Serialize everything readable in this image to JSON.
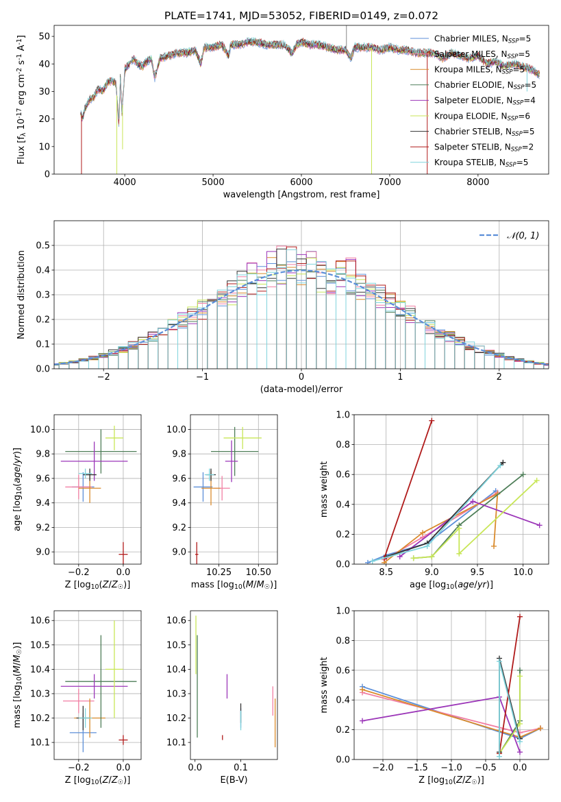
{
  "chart_data": [
    {
      "type": "line",
      "title": "PLATE=1741, MJD=53052, FIBERID=0149, z=0.072",
      "xlabel": "wavelength [Angstrom, rest frame]",
      "ylabel": "Flux [f_λ 10^-17 erg cm^-2 s^-1 A^-1]",
      "xlim": [
        3200,
        8800
      ],
      "ylim": [
        0,
        54
      ],
      "xticks": [
        4000,
        5000,
        6000,
        7000,
        8000
      ],
      "yticks": [
        0,
        10,
        20,
        30,
        40,
        50
      ],
      "legend_position": "top-right",
      "grid": false,
      "series": [
        {
          "name": "Chabrier MILES, N_SSP=5",
          "color": "#5b8ed8"
        },
        {
          "name": "Salpeter MILES, N_SSP=5",
          "color": "#f17ea3"
        },
        {
          "name": "Kroupa MILES, N_SSP=5",
          "color": "#d98a2b"
        },
        {
          "name": "Chabrier ELODIE, N_SSP=5",
          "color": "#4e7e58"
        },
        {
          "name": "Salpeter ELODIE, N_SSP=4",
          "color": "#9b35b8"
        },
        {
          "name": "Kroupa ELODIE, N_SSP=6",
          "color": "#c8e657"
        },
        {
          "name": "Chabrier STELIB, N_SSP=5",
          "color": "#333333"
        },
        {
          "name": "Salpeter STELIB, N_SSP=2",
          "color": "#b01a1a"
        },
        {
          "name": "Kroupa STELIB, N_SSP=5",
          "color": "#7fd3dc"
        }
      ],
      "spectrum": {
        "x": [
          3500,
          3520,
          3550,
          3600,
          3650,
          3700,
          3750,
          3800,
          3850,
          3900,
          3934,
          3950,
          3969,
          4000,
          4050,
          4100,
          4150,
          4200,
          4250,
          4300,
          4340,
          4400,
          4500,
          4600,
          4700,
          4800,
          4861,
          4900,
          5000,
          5100,
          5175,
          5200,
          5300,
          5400,
          5500,
          5600,
          5700,
          5800,
          5893,
          5950,
          6000,
          6100,
          6200,
          6300,
          6400,
          6500,
          6563,
          6600,
          6700,
          6800,
          6900,
          7000,
          7100,
          7200,
          7300,
          7400,
          7500,
          7600,
          7700,
          7800,
          7900,
          8000,
          8100,
          8200,
          8300,
          8400,
          8500,
          8600,
          8700
        ],
        "y": [
          22,
          20,
          24,
          27,
          28,
          31,
          30,
          33,
          34,
          33,
          18,
          35,
          22,
          38,
          40,
          42,
          40,
          39,
          41,
          42,
          35,
          42,
          43,
          44,
          44,
          45,
          40,
          46,
          46,
          47,
          43,
          47,
          47,
          48,
          48,
          47,
          47,
          47,
          44,
          47,
          48,
          47,
          47,
          46,
          45,
          45,
          42,
          46,
          46,
          46,
          45,
          46,
          45,
          45,
          44,
          44,
          44,
          42,
          44,
          43,
          42,
          43,
          40,
          41,
          39,
          40,
          39,
          38,
          36
        ]
      }
    },
    {
      "type": "bar",
      "ylabel": "Normed distribution",
      "xlabel": "(data-model)/error",
      "xlim": [
        -2.5,
        2.5
      ],
      "ylim": [
        0,
        0.6
      ],
      "xticks": [
        -2,
        -1,
        0,
        1,
        2
      ],
      "yticks": [
        0.0,
        0.1,
        0.2,
        0.3,
        0.4,
        0.5
      ],
      "grid": true,
      "legend_position": "top-right",
      "reference_curve": {
        "name": "𝒩(0, 1)",
        "color": "#5b8ed8",
        "style": "dashed",
        "mean": 0,
        "sigma": 1
      },
      "bin_width": 0.1
    },
    {
      "type": "scatter",
      "xlabel": "Z [log10(Z/Z☉)]",
      "ylabel": "age  [log10(age/yr)]",
      "xlim": [
        -0.31,
        0.08
      ],
      "ylim": [
        8.9,
        10.12
      ],
      "xticks": [
        -0.2,
        0.0
      ],
      "yticks": [
        9.0,
        9.2,
        9.4,
        9.6,
        9.8,
        10.0
      ],
      "grid": true,
      "points": [
        {
          "series": "Chabrier MILES",
          "x": -0.18,
          "xerr": 0.05,
          "y": 9.53,
          "yerr": 0.12
        },
        {
          "series": "Salpeter MILES",
          "x": -0.2,
          "xerr": 0.06,
          "y": 9.53,
          "yerr": 0.1
        },
        {
          "series": "Kroupa MILES",
          "x": -0.15,
          "xerr": 0.05,
          "y": 9.52,
          "yerr": 0.12
        },
        {
          "series": "Chabrier ELODIE",
          "x": -0.1,
          "xerr": 0.16,
          "y": 9.82,
          "yerr": 0.18
        },
        {
          "series": "Salpeter ELODIE",
          "x": -0.13,
          "xerr": 0.15,
          "y": 9.74,
          "yerr": 0.16
        },
        {
          "series": "Kroupa ELODIE",
          "x": -0.04,
          "xerr": 0.04,
          "y": 9.93,
          "yerr": 0.1
        },
        {
          "series": "Chabrier STELIB",
          "x": -0.15,
          "xerr": 0.03,
          "y": 9.63,
          "yerr": 0.05
        },
        {
          "series": "Salpeter STELIB",
          "x": 0.0,
          "xerr": 0.02,
          "y": 8.98,
          "yerr": 0.1
        },
        {
          "series": "Kroupa STELIB",
          "x": -0.17,
          "xerr": 0.03,
          "y": 9.64,
          "yerr": 0.04
        }
      ]
    },
    {
      "type": "scatter",
      "xlabel": "mass [log10(M/M☉)]",
      "xlim": [
        10.07,
        10.62
      ],
      "ylim": [
        8.9,
        10.12
      ],
      "xticks": [
        10.25,
        10.5
      ],
      "yticks": [
        9.0,
        9.2,
        9.4,
        9.6,
        9.8,
        10.0
      ],
      "grid": true,
      "points": [
        {
          "series": "Chabrier MILES",
          "x": 10.15,
          "xerr": 0.06,
          "y": 9.53,
          "yerr": 0.12
        },
        {
          "series": "Salpeter MILES",
          "x": 10.27,
          "xerr": 0.05,
          "y": 9.52,
          "yerr": 0.1
        },
        {
          "series": "Kroupa MILES",
          "x": 10.2,
          "xerr": 0.06,
          "y": 9.52,
          "yerr": 0.14
        },
        {
          "series": "Chabrier ELODIE",
          "x": 10.35,
          "xerr": 0.15,
          "y": 9.82,
          "yerr": 0.2
        },
        {
          "series": "Salpeter ELODIE",
          "x": 10.33,
          "xerr": 0.04,
          "y": 9.74,
          "yerr": 0.17
        },
        {
          "series": "Kroupa ELODIE",
          "x": 10.4,
          "xerr": 0.12,
          "y": 9.93,
          "yerr": 0.09
        },
        {
          "series": "Chabrier STELIB",
          "x": 10.2,
          "xerr": 0.03,
          "y": 9.63,
          "yerr": 0.05
        },
        {
          "series": "Salpeter STELIB",
          "x": 10.11,
          "xerr": 0.01,
          "y": 8.98,
          "yerr": 0.1
        },
        {
          "series": "Kroupa STELIB",
          "x": 10.19,
          "xerr": 0.03,
          "y": 9.63,
          "yerr": 0.05
        }
      ]
    },
    {
      "type": "line",
      "xlabel": "age  [log10(age/yr)]",
      "ylabel": "mass weight",
      "xlim": [
        8.15,
        10.28
      ],
      "ylim": [
        0,
        1
      ],
      "xticks": [
        8.5,
        9.0,
        9.5,
        10.0
      ],
      "yticks": [
        0.0,
        0.2,
        0.4,
        0.6,
        0.8,
        1.0
      ],
      "grid": true,
      "series": [
        {
          "name": "Chabrier MILES",
          "x": [
            8.3,
            8.5,
            8.95,
            9.7
          ],
          "y": [
            0.01,
            0.06,
            0.14,
            0.49
          ]
        },
        {
          "name": "Salpeter MILES",
          "x": [
            8.48,
            8.9,
            9.72
          ],
          "y": [
            0.03,
            0.18,
            0.48
          ]
        },
        {
          "name": "Kroupa MILES",
          "x": [
            8.48,
            8.9,
            9.72,
            9.68
          ],
          "y": [
            0.01,
            0.21,
            0.47,
            0.12
          ]
        },
        {
          "name": "Chabrier ELODIE",
          "x": [
            8.8,
            9.0,
            9.3,
            10.0
          ],
          "y": [
            0.04,
            0.05,
            0.26,
            0.6
          ]
        },
        {
          "name": "Salpeter ELODIE",
          "x": [
            8.65,
            9.45,
            10.18
          ],
          "y": [
            0.05,
            0.42,
            0.26
          ]
        },
        {
          "name": "Kroupa ELODIE",
          "x": [
            8.8,
            9.0,
            9.3,
            9.3,
            10.15
          ],
          "y": [
            0.04,
            0.05,
            0.24,
            0.07,
            0.56
          ]
        },
        {
          "name": "Chabrier STELIB",
          "x": [
            8.5,
            8.95,
            9.78
          ],
          "y": [
            0.05,
            0.14,
            0.68
          ]
        },
        {
          "name": "Salpeter STELIB",
          "x": [
            8.48,
            9.0
          ],
          "y": [
            0.04,
            0.96
          ]
        },
        {
          "name": "Kroupa STELIB",
          "x": [
            8.35,
            8.95,
            9.75
          ],
          "y": [
            0.02,
            0.12,
            0.66
          ]
        }
      ]
    },
    {
      "type": "scatter",
      "xlabel": "Z [log10(Z/Z☉)]",
      "ylabel": "mass [log10(M/M☉)]",
      "xlim": [
        -0.31,
        0.08
      ],
      "ylim": [
        10.03,
        10.64
      ],
      "xticks": [
        -0.2,
        0.0
      ],
      "yticks": [
        10.1,
        10.2,
        10.3,
        10.4,
        10.5,
        10.6
      ],
      "grid": true,
      "points": [
        {
          "series": "Chabrier MILES",
          "x": -0.18,
          "xerr": 0.06,
          "y": 10.14,
          "yerr": 0.08
        },
        {
          "series": "Salpeter MILES",
          "x": -0.2,
          "xerr": 0.07,
          "y": 10.27,
          "yerr": 0.05
        },
        {
          "series": "Kroupa MILES",
          "x": -0.15,
          "xerr": 0.07,
          "y": 10.2,
          "yerr": 0.08
        },
        {
          "series": "Chabrier ELODIE",
          "x": -0.1,
          "xerr": 0.16,
          "y": 10.35,
          "yerr": 0.19
        },
        {
          "series": "Salpeter ELODIE",
          "x": -0.13,
          "xerr": 0.15,
          "y": 10.33,
          "yerr": 0.05
        },
        {
          "series": "Kroupa ELODIE",
          "x": -0.04,
          "xerr": 0.04,
          "y": 10.4,
          "yerr": 0.2
        },
        {
          "series": "Chabrier STELIB",
          "x": -0.18,
          "xerr": 0.03,
          "y": 10.2,
          "yerr": 0.05
        },
        {
          "series": "Salpeter STELIB",
          "x": 0.0,
          "xerr": 0.02,
          "y": 10.11,
          "yerr": 0.02
        },
        {
          "series": "Kroupa STELIB",
          "x": -0.17,
          "xerr": 0.03,
          "y": 10.2,
          "yerr": 0.04
        }
      ]
    },
    {
      "type": "scatter",
      "xlabel": "E(B-V)",
      "xlim": [
        -0.01,
        0.18
      ],
      "ylim": [
        10.03,
        10.64
      ],
      "xticks": [
        0.0,
        0.1
      ],
      "yticks": [
        10.1,
        10.2,
        10.3,
        10.4,
        10.5,
        10.6
      ],
      "grid": false,
      "points": [
        {
          "series": "Chabrier MILES",
          "x": 0.1,
          "y": 10.2,
          "yerr": 0.04
        },
        {
          "series": "Salpeter MILES",
          "x": 0.17,
          "y": 10.27,
          "yerr": 0.06
        },
        {
          "series": "Kroupa MILES",
          "x": 0.175,
          "y": 10.18,
          "yerr": 0.1
        },
        {
          "series": "Chabrier ELODIE",
          "x": 0.005,
          "y": 10.33,
          "yerr": 0.21
        },
        {
          "series": "Salpeter ELODIE",
          "x": 0.07,
          "y": 10.33,
          "yerr": 0.05
        },
        {
          "series": "Kroupa ELODIE",
          "x": 0.002,
          "y": 10.5,
          "yerr": 0.12
        },
        {
          "series": "Chabrier STELIB",
          "x": 0.1,
          "y": 10.22,
          "yerr": 0.04
        },
        {
          "series": "Salpeter STELIB",
          "x": 0.06,
          "y": 10.12,
          "yerr": 0.01
        },
        {
          "series": "Kroupa STELIB",
          "x": 0.1,
          "y": 10.19,
          "yerr": 0.04
        }
      ]
    },
    {
      "type": "line",
      "xlabel": "Z [log10(Z/Z☉)]",
      "ylabel": "mass weight",
      "xlim": [
        -2.42,
        0.42
      ],
      "ylim": [
        0,
        1
      ],
      "xticks": [
        -2.0,
        -1.5,
        -1.0,
        -0.5,
        0.0
      ],
      "yticks": [
        0.0,
        0.2,
        0.4,
        0.6,
        0.8,
        1.0
      ],
      "grid": true,
      "series": [
        {
          "name": "Chabrier MILES",
          "x": [
            -2.3,
            0.0,
            0.3
          ],
          "y": [
            0.49,
            0.14,
            0.21
          ]
        },
        {
          "name": "Salpeter MILES",
          "x": [
            -2.3,
            0.0,
            0.3
          ],
          "y": [
            0.45,
            0.18,
            0.21
          ]
        },
        {
          "name": "Kroupa MILES",
          "x": [
            -2.3,
            0.0,
            0.3
          ],
          "y": [
            0.47,
            0.15,
            0.21
          ]
        },
        {
          "name": "Chabrier ELODIE",
          "x": [
            -0.3,
            0.0,
            0.0
          ],
          "y": [
            0.04,
            0.26,
            0.6
          ]
        },
        {
          "name": "Salpeter ELODIE",
          "x": [
            -2.3,
            -0.3,
            0.0
          ],
          "y": [
            0.26,
            0.42,
            0.05
          ]
        },
        {
          "name": "Kroupa ELODIE",
          "x": [
            -0.3,
            0.0,
            0.0
          ],
          "y": [
            0.04,
            0.24,
            0.56
          ]
        },
        {
          "name": "Chabrier STELIB",
          "x": [
            -0.3,
            -0.3,
            0.0
          ],
          "y": [
            0.05,
            0.68,
            0.14
          ]
        },
        {
          "name": "Salpeter STELIB",
          "x": [
            -0.3,
            0.0
          ],
          "y": [
            0.04,
            0.96
          ]
        },
        {
          "name": "Kroupa STELIB",
          "x": [
            -0.3,
            -0.3,
            0.0
          ],
          "y": [
            0.02,
            0.66,
            0.12
          ]
        }
      ]
    }
  ]
}
